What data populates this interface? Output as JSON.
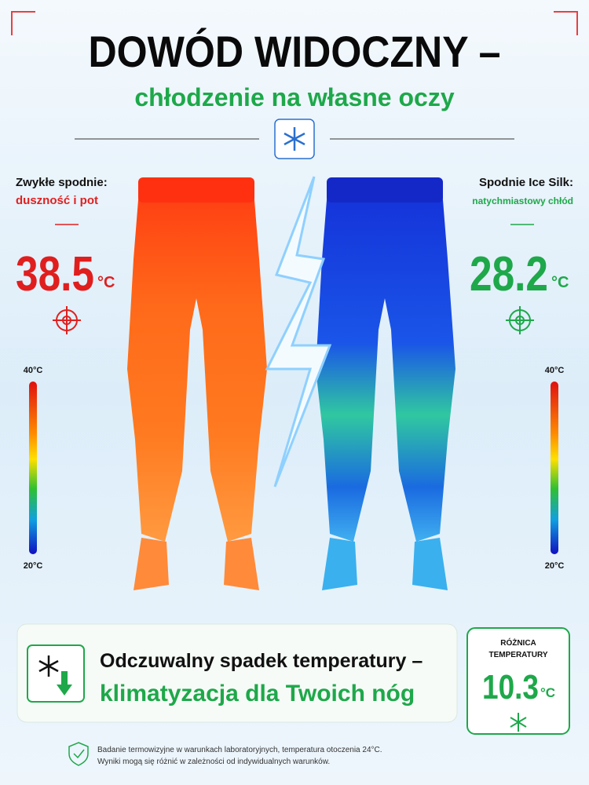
{
  "header": {
    "title": "DOWÓD WIDOCZNY –",
    "subtitle": "chłodzenie na własne oczy"
  },
  "left": {
    "label": "Zwykłe spodnie:",
    "desc": "duszność i pot",
    "temp": "38.5",
    "unit": "°C",
    "scale_top": "40°C",
    "scale_bottom": "20°C"
  },
  "right": {
    "label": "Spodnie Ice Silk:",
    "desc": "natychmiastowy chłód",
    "temp": "28.2",
    "unit": "°C",
    "scale_top": "40°C",
    "scale_bottom": "20°C"
  },
  "banner": {
    "line1": "Odczuwalny spadek temperatury –",
    "line2": "klimatyzacja dla Twoich nóg"
  },
  "difference": {
    "label_line1": "RÓŻNICA",
    "label_line2": "TEMPERATURY",
    "value": "10.3",
    "unit": "°C"
  },
  "footnote": {
    "line1": "Badanie termowizyjne w warunkach laboratoryjnych, temperatura otoczenia 24°C.",
    "line2": "Wyniki mogą się różnić w zależności od indywidualnych warunków."
  }
}
